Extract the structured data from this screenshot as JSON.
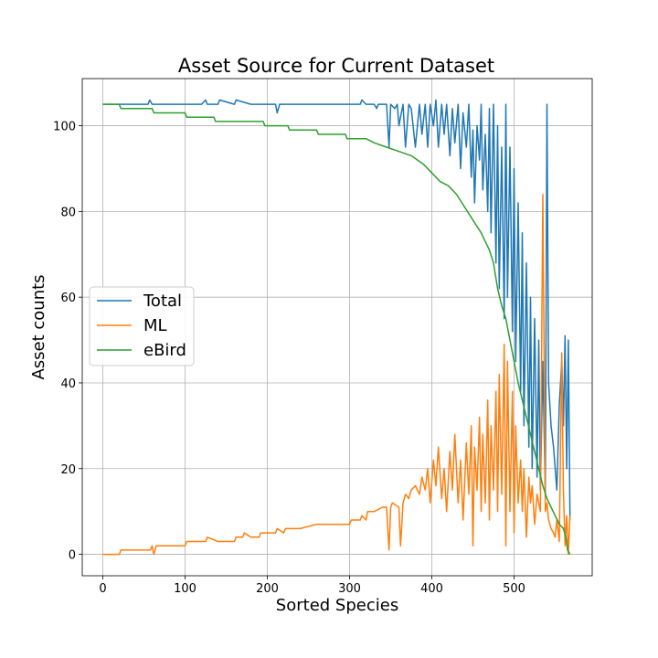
{
  "chart_data": {
    "type": "line",
    "title": "Asset Source for Current Dataset",
    "xlabel": "Sorted Species",
    "ylabel": "Asset counts",
    "xlim": [
      -25,
      595
    ],
    "ylim": [
      -5,
      111
    ],
    "xticks": [
      0,
      100,
      200,
      300,
      400,
      500
    ],
    "yticks": [
      0,
      20,
      40,
      60,
      80,
      100
    ],
    "grid": true,
    "legend_position": "center-left",
    "series": [
      {
        "name": "Total",
        "color": "#1f77b4",
        "x": [
          0,
          20,
          40,
          55,
          57,
          60,
          80,
          100,
          120,
          125,
          127,
          140,
          142,
          160,
          162,
          180,
          200,
          210,
          212,
          215,
          217,
          240,
          260,
          280,
          300,
          313,
          315,
          320,
          330,
          333,
          335,
          345,
          348,
          350,
          355,
          358,
          360,
          365,
          368,
          372,
          375,
          380,
          385,
          388,
          392,
          395,
          398,
          402,
          405,
          408,
          412,
          415,
          418,
          422,
          425,
          428,
          432,
          435,
          438,
          442,
          445,
          448,
          450,
          452,
          455,
          458,
          460,
          462,
          465,
          468,
          470,
          472,
          475,
          478,
          480,
          482,
          485,
          488,
          490,
          492,
          495,
          498,
          500,
          502,
          505,
          508,
          510,
          512,
          515,
          518,
          520,
          522,
          525,
          528,
          530,
          532,
          535,
          538,
          540,
          542,
          545,
          548,
          550,
          552,
          555,
          558,
          560,
          562,
          564,
          566,
          568
        ],
        "values": [
          105,
          105,
          105,
          105,
          106,
          105,
          105,
          105,
          105,
          106,
          105,
          105,
          106,
          105,
          106,
          105,
          105,
          105,
          103,
          105,
          105,
          105,
          105,
          105,
          105,
          105,
          106,
          105,
          105,
          104,
          105,
          105,
          95,
          105,
          104,
          105,
          100,
          105,
          95,
          105,
          104,
          95,
          105,
          98,
          105,
          95,
          105,
          100,
          106,
          95,
          105,
          98,
          105,
          93,
          104,
          96,
          105,
          90,
          103,
          95,
          105,
          88,
          99,
          82,
          100,
          92,
          105,
          85,
          98,
          80,
          104,
          75,
          105,
          68,
          100,
          62,
          95,
          55,
          105,
          60,
          95,
          52,
          90,
          45,
          82,
          38,
          75,
          30,
          68,
          25,
          60,
          20,
          55,
          18,
          50,
          15,
          45,
          14,
          105,
          40,
          30,
          25,
          20,
          15,
          35,
          45,
          30,
          51,
          20,
          50,
          8
        ],
        "decor": {
          "stroke_width": 1.5
        }
      },
      {
        "name": "ML",
        "color": "#ff7f0e",
        "x": [
          0,
          20,
          22,
          40,
          58,
          60,
          62,
          65,
          80,
          100,
          102,
          120,
          125,
          127,
          140,
          160,
          162,
          170,
          172,
          180,
          190,
          192,
          200,
          210,
          212,
          220,
          222,
          240,
          260,
          280,
          300,
          302,
          313,
          315,
          320,
          322,
          330,
          340,
          345,
          348,
          350,
          352,
          360,
          362,
          365,
          368,
          372,
          375,
          380,
          385,
          388,
          392,
          395,
          398,
          402,
          405,
          408,
          412,
          415,
          418,
          422,
          425,
          428,
          432,
          435,
          438,
          442,
          445,
          448,
          450,
          452,
          455,
          458,
          460,
          462,
          465,
          468,
          470,
          472,
          475,
          478,
          480,
          482,
          485,
          488,
          490,
          492,
          495,
          498,
          500,
          502,
          505,
          508,
          510,
          512,
          515,
          518,
          520,
          522,
          525,
          528,
          530,
          532,
          535,
          538,
          540,
          542,
          545,
          548,
          550,
          552,
          555,
          558,
          560,
          562,
          564,
          566,
          568
        ],
        "values": [
          0,
          0,
          1,
          1,
          1,
          2,
          0,
          2,
          2,
          2,
          3,
          3,
          3,
          4,
          3,
          3,
          4,
          4,
          5,
          4,
          4,
          5,
          5,
          5,
          6,
          5,
          6,
          6,
          7,
          7,
          7,
          8,
          8,
          9,
          8,
          10,
          10,
          11,
          11,
          1,
          11,
          12,
          11,
          2,
          12,
          14,
          13,
          15,
          16,
          14,
          18,
          15,
          20,
          12,
          22,
          16,
          25,
          13,
          20,
          10,
          24,
          15,
          28,
          12,
          22,
          8,
          26,
          14,
          30,
          2,
          25,
          15,
          32,
          10,
          28,
          12,
          36,
          8,
          30,
          15,
          38,
          10,
          42,
          14,
          49,
          2,
          45,
          10,
          38,
          5,
          30,
          12,
          22,
          10,
          20,
          4,
          18,
          12,
          16,
          7,
          14,
          12,
          10,
          84,
          10,
          12,
          8,
          6,
          5,
          4,
          8,
          3,
          47,
          15,
          2,
          9,
          0,
          9
        ],
        "decor": {
          "stroke_width": 1.5
        }
      },
      {
        "name": "eBird",
        "color": "#2ca02c",
        "x": [
          0,
          20,
          22,
          60,
          62,
          100,
          102,
          135,
          137,
          195,
          197,
          225,
          227,
          260,
          262,
          295,
          297,
          320,
          330,
          345,
          360,
          375,
          390,
          400,
          410,
          420,
          430,
          440,
          450,
          460,
          470,
          475,
          480,
          485,
          490,
          495,
          500,
          505,
          510,
          515,
          520,
          525,
          530,
          535,
          540,
          545,
          550,
          555,
          560,
          563,
          565,
          568
        ],
        "values": [
          105,
          105,
          104,
          104,
          103,
          103,
          102,
          102,
          101,
          101,
          100,
          100,
          99,
          99,
          98,
          98,
          97,
          97,
          96,
          95,
          94,
          93,
          91,
          89,
          87,
          86,
          84,
          81,
          78,
          75,
          71,
          68,
          62,
          58,
          55,
          50,
          45,
          40,
          36,
          32,
          28,
          24,
          20,
          16,
          13,
          11,
          9,
          7,
          6,
          4,
          1,
          0
        ],
        "decor": {
          "stroke_width": 1.5
        }
      }
    ]
  }
}
